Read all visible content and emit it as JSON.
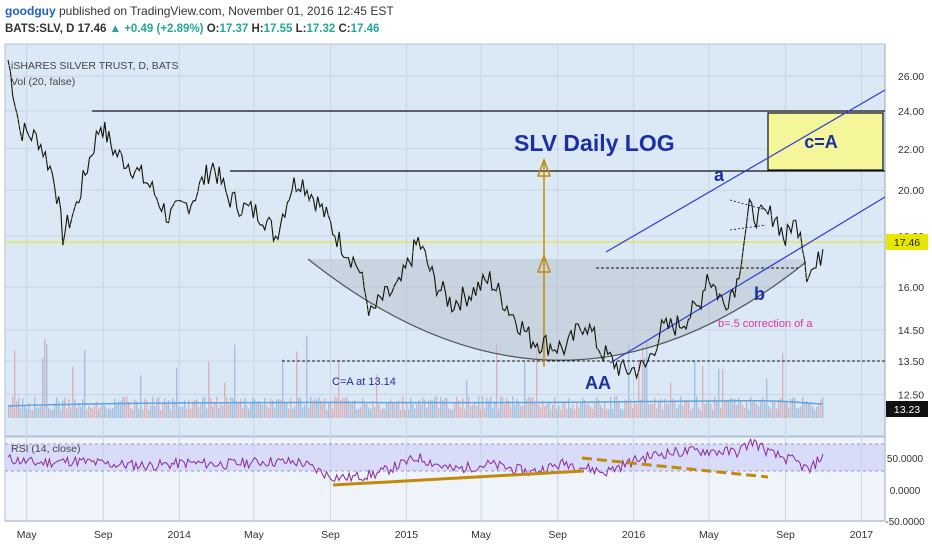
{
  "header": {
    "author": "goodguy",
    "published": "published on TradingView.com, November 01, 2016 12:45 EST",
    "symbol": "BATS:SLV, D",
    "last": "17.46",
    "change": "+0.49 (+2.89%)",
    "open_label": "O:",
    "open": "17.37",
    "high_label": "H:",
    "high": "17.55",
    "low_label": "L:",
    "low": "17.32",
    "close_label": "C:",
    "close": "17.46"
  },
  "chart_data": {
    "type": "line",
    "title": "SLV Daily LOG",
    "legend": [
      "iSHARES SILVER TRUST, D, BATS",
      "Vol (20, false)"
    ],
    "price_scale": "log",
    "ylim": [
      11.2,
      27.5
    ],
    "y_ticks": [
      26.0,
      24.0,
      22.0,
      20.0,
      18.0,
      16.0,
      14.5,
      13.5,
      12.5
    ],
    "x_ticks": [
      {
        "label": "May",
        "date": "2013-05-01"
      },
      {
        "label": "Sep",
        "date": "2013-09-01"
      },
      {
        "label": "2014",
        "date": "2014-01-01"
      },
      {
        "label": "May",
        "date": "2014-05-01"
      },
      {
        "label": "Sep",
        "date": "2014-09-01"
      },
      {
        "label": "2015",
        "date": "2015-01-01"
      },
      {
        "label": "May",
        "date": "2015-05-01"
      },
      {
        "label": "Sep",
        "date": "2015-09-01"
      },
      {
        "label": "2016",
        "date": "2016-01-01"
      },
      {
        "label": "May",
        "date": "2016-05-01"
      },
      {
        "label": "Sep",
        "date": "2016-09-01"
      },
      {
        "label": "2017",
        "date": "2017-01-01"
      }
    ],
    "price_series": [
      [
        "2013-04-01",
        27.0
      ],
      [
        "2013-04-20",
        23.0
      ],
      [
        "2013-05-20",
        22.5
      ],
      [
        "2013-06-15",
        20.5
      ],
      [
        "2013-06-28",
        18.0
      ],
      [
        "2013-07-20",
        19.3
      ],
      [
        "2013-08-10",
        21.5
      ],
      [
        "2013-08-28",
        23.3
      ],
      [
        "2013-09-20",
        21.8
      ],
      [
        "2013-10-15",
        21.2
      ],
      [
        "2013-11-15",
        20.2
      ],
      [
        "2013-12-15",
        18.8
      ],
      [
        "2014-01-20",
        19.5
      ],
      [
        "2014-02-24",
        21.2
      ],
      [
        "2014-03-20",
        19.7
      ],
      [
        "2014-04-15",
        19.2
      ],
      [
        "2014-05-15",
        18.9
      ],
      [
        "2014-06-05",
        18.0
      ],
      [
        "2014-07-01",
        20.2
      ],
      [
        "2014-07-15",
        20.5
      ],
      [
        "2014-08-15",
        19.3
      ],
      [
        "2014-09-15",
        17.8
      ],
      [
        "2014-10-15",
        16.8
      ],
      [
        "2014-11-05",
        15.0
      ],
      [
        "2014-11-20",
        15.5
      ],
      [
        "2014-12-20",
        16.0
      ],
      [
        "2015-01-20",
        17.8
      ],
      [
        "2015-02-15",
        16.2
      ],
      [
        "2015-03-15",
        15.4
      ],
      [
        "2015-04-15",
        15.8
      ],
      [
        "2015-05-15",
        16.3
      ],
      [
        "2015-06-15",
        15.2
      ],
      [
        "2015-07-20",
        14.2
      ],
      [
        "2015-08-20",
        14.0
      ],
      [
        "2015-09-15",
        13.9
      ],
      [
        "2015-10-15",
        14.8
      ],
      [
        "2015-11-10",
        13.8
      ],
      [
        "2015-12-15",
        13.2
      ],
      [
        "2016-01-20",
        13.3
      ],
      [
        "2016-02-15",
        14.5
      ],
      [
        "2016-03-15",
        14.7
      ],
      [
        "2016-04-15",
        15.3
      ],
      [
        "2016-04-28",
        16.5
      ],
      [
        "2016-05-25",
        15.4
      ],
      [
        "2016-06-15",
        16.2
      ],
      [
        "2016-07-05",
        19.1
      ],
      [
        "2016-07-20",
        18.8
      ],
      [
        "2016-08-15",
        18.9
      ],
      [
        "2016-09-01",
        17.8
      ],
      [
        "2016-09-10",
        18.5
      ],
      [
        "2016-09-25",
        18.4
      ],
      [
        "2016-10-05",
        16.6
      ],
      [
        "2016-10-20",
        16.7
      ],
      [
        "2016-10-31",
        17.46
      ]
    ],
    "volume_scale_max": 20,
    "volume_label": "13.23",
    "last_price_label": "17.46",
    "annotations": {
      "ca_box": "c=A",
      "label_a": "a",
      "label_b": "b",
      "label_aa": "AA",
      "correction_text": "b=.5 correction of a",
      "ca_level_text": "C=A at 13.14"
    },
    "levels": [
      23.5,
      20.6,
      13.14
    ],
    "rsi": {
      "label": "RSI (14, close)",
      "ticks": [
        50.0,
        0.0,
        -50.0
      ],
      "tick_labels": [
        "50.0000",
        "0.0000",
        "-50.0000"
      ],
      "series": [
        [
          "2013-04-01",
          48
        ],
        [
          "2013-05-15",
          42
        ],
        [
          "2013-07-15",
          45
        ],
        [
          "2013-09-15",
          40
        ],
        [
          "2013-11-15",
          38
        ],
        [
          "2014-01-15",
          42
        ],
        [
          "2014-03-15",
          40
        ],
        [
          "2014-05-15",
          44
        ],
        [
          "2014-07-15",
          43
        ],
        [
          "2014-09-01",
          22
        ],
        [
          "2014-10-01",
          20
        ],
        [
          "2014-11-15",
          26
        ],
        [
          "2015-01-20",
          50
        ],
        [
          "2015-03-15",
          32
        ],
        [
          "2015-05-15",
          40
        ],
        [
          "2015-07-20",
          28
        ],
        [
          "2015-09-15",
          42
        ],
        [
          "2015-11-15",
          28
        ],
        [
          "2016-01-10",
          48
        ],
        [
          "2016-02-15",
          56
        ],
        [
          "2016-04-15",
          60
        ],
        [
          "2016-06-15",
          58
        ],
        [
          "2016-07-10",
          74
        ],
        [
          "2016-08-10",
          55
        ],
        [
          "2016-09-15",
          45
        ],
        [
          "2016-10-10",
          30
        ],
        [
          "2016-10-31",
          55
        ]
      ]
    }
  }
}
